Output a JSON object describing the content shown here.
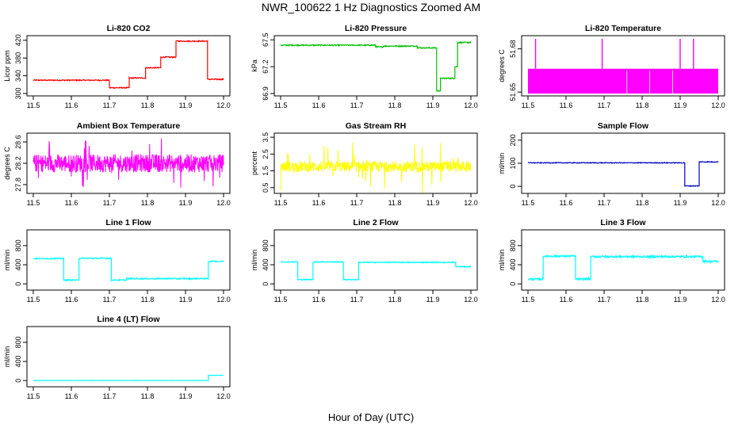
{
  "figure": {
    "title": "NWR_100622  1 Hz Diagnostics Zoomed AM",
    "xlabel": "Hour of Day (UTC)"
  },
  "chart_data": [
    {
      "type": "line",
      "title": "Li-820 CO2",
      "ylabel": "Licor ppm",
      "color": "#ff0000",
      "xlim": [
        11.5,
        12.0
      ],
      "ylim": [
        300,
        425
      ],
      "xticks": [
        "11.5",
        "11.6",
        "11.7",
        "11.8",
        "11.9",
        "12.0"
      ],
      "yticks": [
        300,
        340,
        380,
        420
      ],
      "series": [
        {
          "segments": [
            [
              11.5,
              11.7,
              330
            ],
            [
              11.7,
              11.752,
              313
            ],
            [
              11.752,
              11.795,
              335
            ],
            [
              11.795,
              11.835,
              358
            ],
            [
              11.835,
              11.875,
              382
            ],
            [
              11.875,
              11.958,
              418
            ],
            [
              11.958,
              12.0,
              332
            ]
          ],
          "noise": 1.2
        }
      ]
    },
    {
      "type": "line",
      "title": "Li-820 Pressure",
      "ylabel": "kPa",
      "color": "#00c000",
      "xlim": [
        11.5,
        12.0
      ],
      "ylim": [
        66.9,
        67.52
      ],
      "xticks": [
        "11.5",
        "11.6",
        "11.7",
        "11.8",
        "11.9",
        "12.0"
      ],
      "yticks": [
        66.9,
        67.2,
        67.5
      ],
      "series": [
        {
          "segments": [
            [
              11.5,
              11.75,
              67.44
            ],
            [
              11.75,
              11.77,
              67.42
            ],
            [
              11.77,
              11.86,
              67.43
            ],
            [
              11.86,
              11.91,
              67.41
            ],
            [
              11.91,
              11.92,
              66.93
            ],
            [
              11.92,
              11.958,
              67.07
            ],
            [
              11.958,
              11.965,
              67.2
            ],
            [
              11.965,
              12.0,
              67.47
            ]
          ],
          "noise": 0.006
        }
      ]
    },
    {
      "type": "line",
      "title": "Li-820 Temperature",
      "ylabel": "degrees C",
      "color": "#ff00ff",
      "xlim": [
        11.5,
        12.0
      ],
      "ylim": [
        51.649,
        51.6875
      ],
      "xticks": [
        "11.5",
        "11.6",
        "11.7",
        "11.8",
        "11.9",
        "12.0"
      ],
      "yticks": [
        51.65,
        51.68
      ],
      "series": [
        {
          "band": [
            51.649,
            51.6662
          ],
          "spikes": [
            11.52,
            11.695,
            11.9,
            11.935
          ]
        }
      ]
    },
    {
      "type": "line",
      "title": "Ambient Box Temperature",
      "ylabel": "degrees C",
      "color": "#ff00ff",
      "xlim": [
        11.5,
        12.0
      ],
      "ylim": [
        27.68,
        28.72
      ],
      "xticks": [
        "11.5",
        "11.6",
        "11.7",
        "11.8",
        "11.9",
        "12.0"
      ],
      "yticks": [
        27.8,
        28.2,
        28.6
      ],
      "series": [
        {
          "center": 28.2,
          "noise": 0.17,
          "spread": 0.48
        }
      ]
    },
    {
      "type": "line",
      "title": "Gas Stream RH",
      "ylabel": "percent",
      "color": "#ffff00",
      "xlim": [
        11.5,
        12.0
      ],
      "ylim": [
        0.3,
        3.6
      ],
      "xticks": [
        "11.5",
        "11.6",
        "11.7",
        "11.8",
        "11.9",
        "12.0"
      ],
      "yticks": [
        0.5,
        1.5,
        2.5,
        3.5
      ],
      "series": [
        {
          "center": 1.75,
          "noise": 0.32,
          "spread": 1.6
        }
      ]
    },
    {
      "type": "line",
      "title": "Sample Flow",
      "ylabel": "ml/min",
      "color": "#0000c0",
      "xlim": [
        11.5,
        12.0
      ],
      "ylim": [
        -20,
        220
      ],
      "xticks": [
        "11.5",
        "11.6",
        "11.7",
        "11.8",
        "11.9",
        "12.0"
      ],
      "yticks": [
        0,
        100,
        200
      ],
      "series": [
        {
          "segments": [
            [
              11.5,
              11.912,
              102
            ],
            [
              11.912,
              11.95,
              2
            ],
            [
              11.95,
              12.0,
              106
            ]
          ],
          "noise": 1.5
        }
      ]
    },
    {
      "type": "line",
      "title": "Line 1 Flow",
      "ylabel": "ml/min",
      "color": "#00ffff",
      "xlim": [
        11.5,
        12.0
      ],
      "ylim": [
        -80,
        1080
      ],
      "xticks": [
        "11.5",
        "11.6",
        "11.7",
        "11.8",
        "11.9",
        "12.0"
      ],
      "yticks": [
        0,
        400,
        800
      ],
      "series": [
        {
          "segments": [
            [
              11.5,
              11.58,
              530
            ],
            [
              11.58,
              11.62,
              80
            ],
            [
              11.62,
              11.705,
              535
            ],
            [
              11.705,
              11.745,
              80
            ],
            [
              11.745,
              11.96,
              110
            ],
            [
              11.96,
              12.0,
              470
            ]
          ],
          "noise": 12
        }
      ]
    },
    {
      "type": "line",
      "title": "Line 2 Flow",
      "ylabel": "ml/min",
      "color": "#00ffff",
      "xlim": [
        11.5,
        12.0
      ],
      "ylim": [
        -80,
        1080
      ],
      "xticks": [
        "11.5",
        "11.6",
        "11.7",
        "11.8",
        "11.9",
        "12.0"
      ],
      "yticks": [
        0,
        400,
        800
      ],
      "series": [
        {
          "segments": [
            [
              11.5,
              11.545,
              460
            ],
            [
              11.545,
              11.585,
              90
            ],
            [
              11.585,
              11.665,
              460
            ],
            [
              11.665,
              11.705,
              90
            ],
            [
              11.705,
              11.96,
              450
            ],
            [
              11.96,
              12.0,
              360
            ]
          ],
          "noise": 10
        }
      ]
    },
    {
      "type": "line",
      "title": "Line 3 Flow",
      "ylabel": "ml/min",
      "color": "#00ffff",
      "xlim": [
        11.5,
        12.0
      ],
      "ylim": [
        -80,
        1080
      ],
      "xticks": [
        "11.5",
        "11.6",
        "11.7",
        "11.8",
        "11.9",
        "12.0"
      ],
      "yticks": [
        0,
        400,
        800
      ],
      "series": [
        {
          "segments": [
            [
              11.5,
              11.54,
              100
            ],
            [
              11.54,
              11.625,
              580
            ],
            [
              11.625,
              11.665,
              100
            ],
            [
              11.665,
              11.96,
              570
            ],
            [
              11.96,
              12.0,
              470
            ]
          ],
          "noise": 20
        }
      ]
    },
    {
      "type": "line",
      "title": "Line 4 (LT) Flow",
      "ylabel": "ml/min",
      "color": "#00ffff",
      "xlim": [
        11.5,
        12.0
      ],
      "ylim": [
        -80,
        1080
      ],
      "xticks": [
        "11.5",
        "11.6",
        "11.7",
        "11.8",
        "11.9",
        "12.0"
      ],
      "yticks": [
        0,
        400,
        800
      ],
      "series": [
        {
          "segments": [
            [
              11.5,
              11.96,
              0
            ],
            [
              11.96,
              12.0,
              110
            ]
          ],
          "noise": 3
        }
      ]
    }
  ]
}
